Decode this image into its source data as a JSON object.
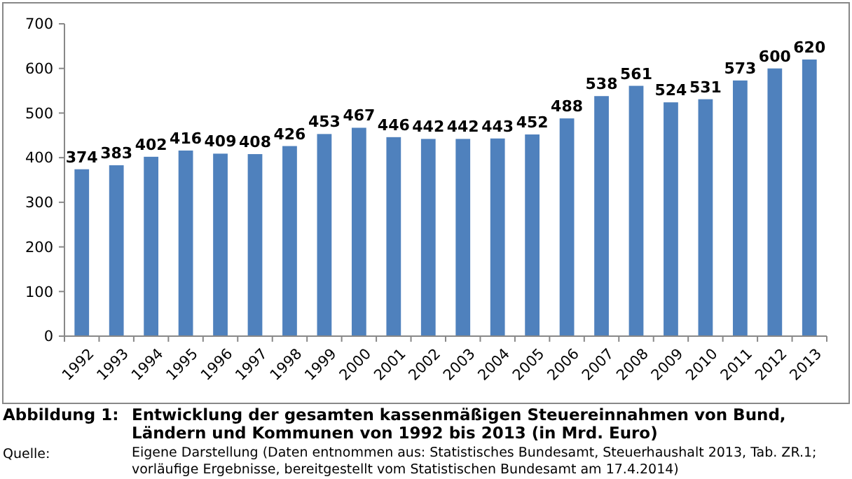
{
  "chart_data": {
    "type": "bar",
    "title": "Entwicklung der gesamten kassenmäßigen Steuereinnahmen von Bund, Ländern und Kommunen von 1992 bis 2013 (in Mrd. Euro)",
    "categories": [
      "1992",
      "1993",
      "1994",
      "1995",
      "1996",
      "1997",
      "1998",
      "1999",
      "2000",
      "2001",
      "2002",
      "2003",
      "2004",
      "2005",
      "2006",
      "2007",
      "2008",
      "2009",
      "2010",
      "2011",
      "2012",
      "2013"
    ],
    "values": [
      374,
      383,
      402,
      416,
      409,
      408,
      426,
      453,
      467,
      446,
      442,
      442,
      443,
      452,
      488,
      538,
      561,
      524,
      531,
      573,
      600,
      620
    ],
    "color": "#4f81bd",
    "ylim": [
      0,
      700
    ],
    "yticks": [
      0,
      100,
      200,
      300,
      400,
      500,
      600,
      700
    ],
    "grid": false,
    "data_labels": true,
    "annotations": [
      "Abbildung 1:",
      "Quelle:",
      "Eigene Darstellung (Daten entnommen aus: Statistisches Bundesamt, Steuerhaushalt 2013, Tab. ZR.1; vorläufige Ergebnisse, bereitgestellt vom Statistischen Bundesamt am 17.4.2014)"
    ]
  }
}
